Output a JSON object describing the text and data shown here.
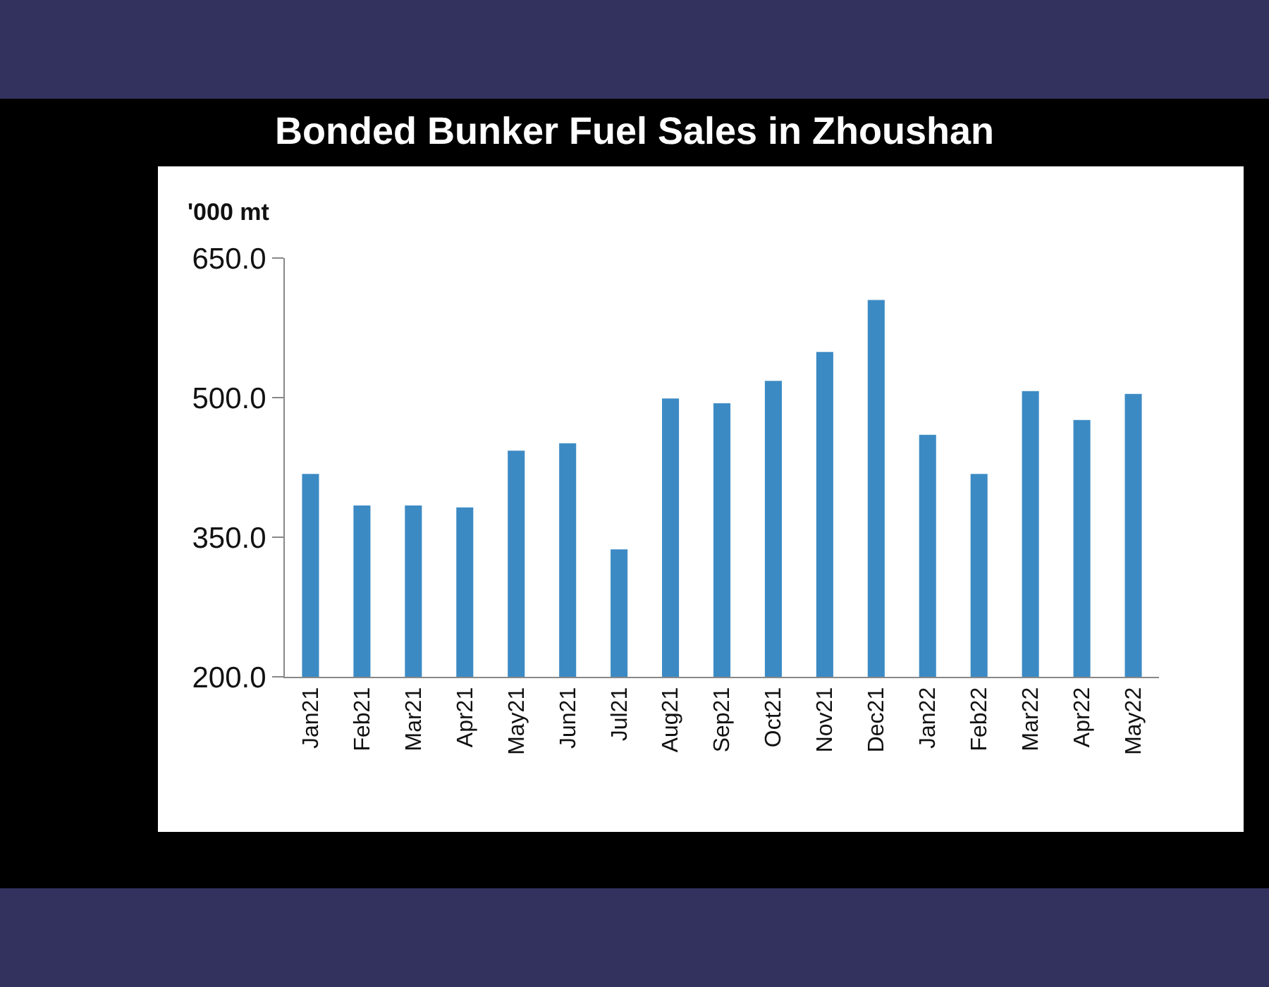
{
  "chart_data": {
    "type": "bar",
    "title": "Bonded Bunker Fuel Sales in Zhoushan",
    "ylabel": "'000 mt",
    "categories": [
      "Jan21",
      "Feb21",
      "Mar21",
      "Apr21",
      "May21",
      "Jun21",
      "Jul21",
      "Aug21",
      "Sep21",
      "Oct21",
      "Nov21",
      "Dec21",
      "Jan22",
      "Feb22",
      "Mar22",
      "Apr22",
      "May22"
    ],
    "series": [
      {
        "color": "#3c8ac4",
        "values": [
          418,
          384,
          384,
          382,
          443,
          451,
          337,
          499,
          494,
          518,
          549,
          605,
          460,
          418,
          507,
          476,
          504
        ]
      }
    ],
    "ylim": [
      200,
      650
    ],
    "yticks": [
      {
        "value": 200,
        "label": "200.0"
      },
      {
        "value": 350,
        "label": "350.0"
      },
      {
        "value": 500,
        "label": "500.0"
      },
      {
        "value": 650,
        "label": "650.0"
      }
    ]
  }
}
